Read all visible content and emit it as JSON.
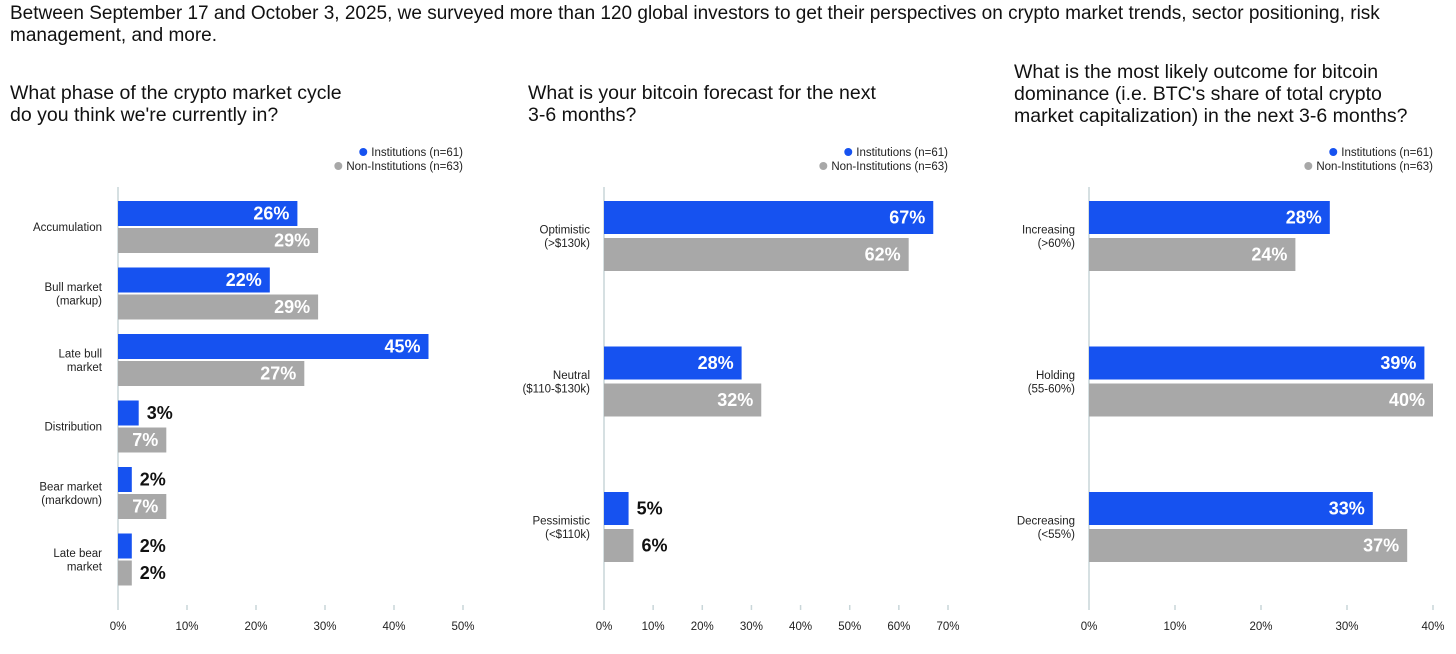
{
  "intro": "Between September 17 and October 3, 2025, we surveyed more than 120 global investors to get their perspectives on crypto market trends, sector positioning, risk management, and more.",
  "colors": {
    "institutions": "#1652f0",
    "non_institutions": "#a8a8a8",
    "axis": "#c9d6d9"
  },
  "chart_data": [
    {
      "type": "bar",
      "orientation": "horizontal",
      "title": "What phase of the crypto market cycle\ndo you think we're currently in?",
      "legend": [
        "Institutions (n=61)",
        "Non-Institutions (n=63)"
      ],
      "categories": [
        [
          "Accumulation"
        ],
        [
          "Bull market",
          "(markup)"
        ],
        [
          "Late bull",
          "market"
        ],
        [
          "Distribution"
        ],
        [
          "Bear market",
          "(markdown)"
        ],
        [
          "Late bear",
          "market"
        ]
      ],
      "series": [
        {
          "name": "Institutions (n=61)",
          "values": [
            26,
            22,
            45,
            3,
            2,
            2
          ],
          "labels": [
            "26%",
            "22%",
            "45%",
            "3%",
            "2%",
            "2%"
          ]
        },
        {
          "name": "Non-Institutions (n=63)",
          "values": [
            29,
            29,
            27,
            7,
            7,
            2
          ],
          "labels": [
            "29%",
            "29%",
            "27%",
            "7%",
            "7%",
            "2%"
          ]
        }
      ],
      "xlim": [
        0,
        50
      ],
      "ticks": [
        "0%",
        "10%",
        "20%",
        "30%",
        "40%",
        "50%"
      ],
      "grid": false
    },
    {
      "type": "bar",
      "orientation": "horizontal",
      "title": "What is your bitcoin forecast for the next\n3-6 months?",
      "legend": [
        "Institutions (n=61)",
        "Non-Institutions (n=63)"
      ],
      "categories": [
        [
          "Optimistic",
          "(>$130k)"
        ],
        [
          "Neutral",
          "($110-$130k)"
        ],
        [
          "Pessimistic",
          "(<$110k)"
        ]
      ],
      "series": [
        {
          "name": "Institutions (n=61)",
          "values": [
            67,
            28,
            5
          ],
          "labels": [
            "67%",
            "28%",
            "5%"
          ]
        },
        {
          "name": "Non-Institutions (n=63)",
          "values": [
            62,
            32,
            6
          ],
          "labels": [
            "62%",
            "32%",
            "6%"
          ]
        }
      ],
      "xlim": [
        0,
        70
      ],
      "ticks": [
        "0%",
        "10%",
        "20%",
        "30%",
        "40%",
        "50%",
        "60%",
        "70%"
      ],
      "grid": false
    },
    {
      "type": "bar",
      "orientation": "horizontal",
      "title": "What is the most likely outcome for bitcoin\ndominance (i.e. BTC's share of total crypto\nmarket capitalization) in the next 3-6 months?",
      "legend": [
        "Institutions (n=61)",
        "Non-Institutions (n=63)"
      ],
      "categories": [
        [
          "Increasing",
          "(>60%)"
        ],
        [
          "Holding",
          "(55-60%)"
        ],
        [
          "Decreasing",
          "(<55%)"
        ]
      ],
      "series": [
        {
          "name": "Institutions (n=61)",
          "values": [
            28,
            39,
            33
          ],
          "labels": [
            "28%",
            "39%",
            "33%"
          ]
        },
        {
          "name": "Non-Institutions (n=63)",
          "values": [
            24,
            40,
            37
          ],
          "labels": [
            "24%",
            "40%",
            "37%"
          ]
        }
      ],
      "xlim": [
        0,
        40
      ],
      "ticks": [
        "0%",
        "10%",
        "20%",
        "30%",
        "40%"
      ],
      "grid": false
    }
  ]
}
